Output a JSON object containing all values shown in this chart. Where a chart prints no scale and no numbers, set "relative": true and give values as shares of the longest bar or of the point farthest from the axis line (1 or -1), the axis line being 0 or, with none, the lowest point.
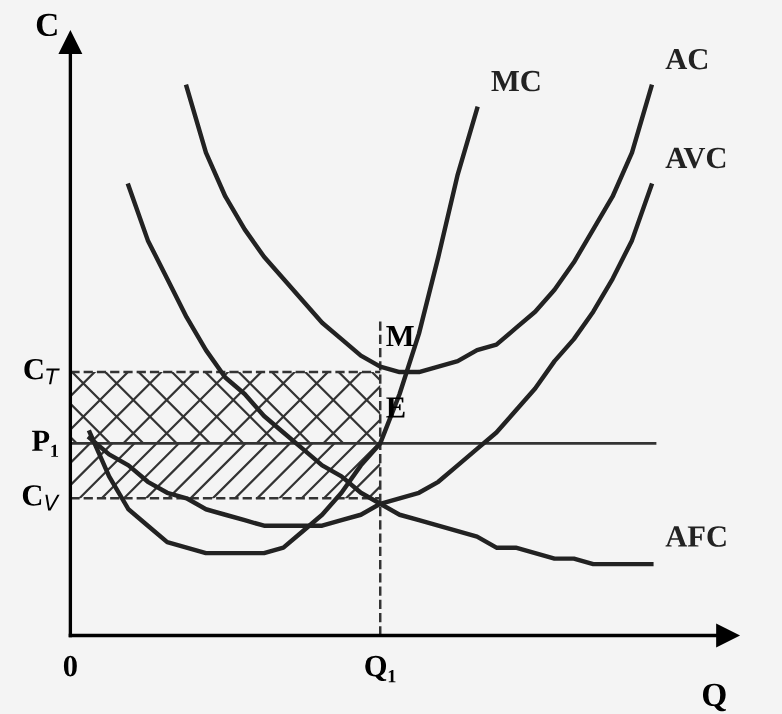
{
  "chart_data": {
    "type": "line",
    "relative": true,
    "xlabel": "Q",
    "ylabel": "C",
    "tick_labels": "x",
    "legend": false,
    "categories": [
      "0",
      null,
      null,
      null,
      null,
      null,
      null,
      null,
      null,
      null,
      null,
      null,
      null,
      null,
      null,
      null,
      "Q₁",
      null,
      null,
      null,
      null,
      null,
      null,
      null,
      null,
      null,
      null,
      null,
      null,
      null,
      null,
      null,
      null
    ],
    "series": [
      {
        "name": "AC",
        "color": "#222222",
        "values": [
          null,
          null,
          null,
          null,
          null,
          null,
          1.0,
          0.88,
          0.8,
          0.74,
          0.69,
          0.65,
          0.61,
          0.57,
          0.54,
          0.51,
          0.49,
          0.48,
          0.48,
          0.49,
          0.5,
          0.52,
          0.53,
          0.56,
          0.59,
          0.63,
          0.68,
          0.74,
          0.8,
          0.88,
          1.0,
          null,
          null
        ]
      },
      {
        "name": "MC",
        "color": "#222222",
        "values": [
          null,
          0.37,
          0.29,
          0.23,
          0.2,
          0.17,
          0.16,
          0.15,
          0.15,
          0.15,
          0.15,
          0.16,
          0.19,
          0.22,
          0.26,
          0.31,
          0.35,
          0.44,
          0.55,
          0.69,
          0.84,
          0.96,
          null,
          null,
          null,
          null,
          null,
          null,
          null,
          null,
          null,
          null,
          null
        ]
      },
      {
        "name": "AVC",
        "color": "#222222",
        "values": [
          null,
          0.36,
          0.33,
          0.31,
          0.28,
          0.26,
          0.25,
          0.23,
          0.22,
          0.21,
          0.2,
          0.2,
          0.2,
          0.2,
          0.21,
          0.22,
          0.24,
          0.25,
          0.26,
          0.28,
          0.31,
          0.34,
          0.37,
          0.41,
          0.45,
          0.5,
          0.54,
          0.59,
          0.65,
          0.72,
          0.82,
          null,
          null
        ]
      },
      {
        "name": "AFC",
        "color": "#222222",
        "values": [
          null,
          null,
          null,
          0.82,
          0.72,
          0.65,
          0.58,
          0.52,
          0.47,
          0.44,
          0.4,
          0.37,
          0.34,
          0.31,
          0.29,
          0.26,
          0.24,
          0.22,
          0.21,
          0.2,
          0.19,
          0.18,
          0.16,
          0.16,
          0.15,
          0.14,
          0.14,
          0.13,
          0.13,
          0.13,
          0.13,
          null,
          null
        ]
      }
    ],
    "ref_lines": [
      {
        "axis": "y",
        "value": 0.35,
        "label": "P₁",
        "line_style": "solid"
      },
      {
        "axis": "x",
        "value": "Q₁",
        "line_style": "dashed"
      }
    ],
    "bands": [
      {
        "axis": "y",
        "from": 0.35,
        "to": 0.48,
        "label": "C$_{T}$"
      },
      {
        "axis": "y",
        "from": 0.25,
        "to": 0.35,
        "label": "C$_{V}$"
      }
    ],
    "annotations": [
      {
        "text": "M",
        "x": "Q₁",
        "y": 0.48
      },
      {
        "text": "E",
        "x": "Q₁",
        "y": 0.35
      }
    ]
  }
}
